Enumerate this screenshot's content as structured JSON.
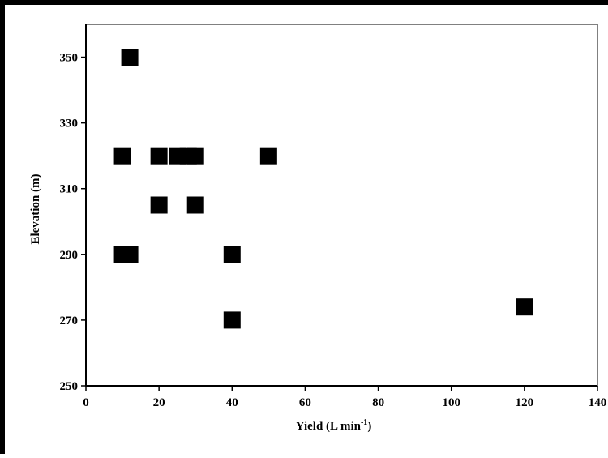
{
  "chart_data": {
    "type": "scatter",
    "title": "",
    "xlabel": "Yield (L min",
    "xlabel_superscript": "-1",
    "xlabel_suffix": ")",
    "ylabel": "Elevation (m)",
    "xlim": [
      0,
      140
    ],
    "ylim": [
      250,
      360
    ],
    "x_ticks": [
      0,
      20,
      40,
      60,
      80,
      100,
      120,
      140
    ],
    "y_ticks": [
      250,
      270,
      290,
      310,
      330,
      350
    ],
    "x_tick_labels": [
      "0",
      "20",
      "40",
      "60",
      "80",
      "100",
      "120",
      "140"
    ],
    "y_tick_labels": [
      "250",
      "270",
      "290",
      "310",
      "330",
      "350"
    ],
    "grid": false,
    "legend": "none",
    "marker": "square",
    "marker_color": "#000000",
    "frame_color": "#808080",
    "points": [
      {
        "x": 12,
        "y": 350
      },
      {
        "x": 10,
        "y": 320
      },
      {
        "x": 20,
        "y": 320
      },
      {
        "x": 25,
        "y": 320
      },
      {
        "x": 28,
        "y": 320
      },
      {
        "x": 30,
        "y": 320
      },
      {
        "x": 50,
        "y": 320
      },
      {
        "x": 20,
        "y": 305
      },
      {
        "x": 30,
        "y": 305
      },
      {
        "x": 10,
        "y": 290
      },
      {
        "x": 12,
        "y": 290
      },
      {
        "x": 40,
        "y": 290
      },
      {
        "x": 40,
        "y": 270
      },
      {
        "x": 120,
        "y": 274
      }
    ]
  }
}
